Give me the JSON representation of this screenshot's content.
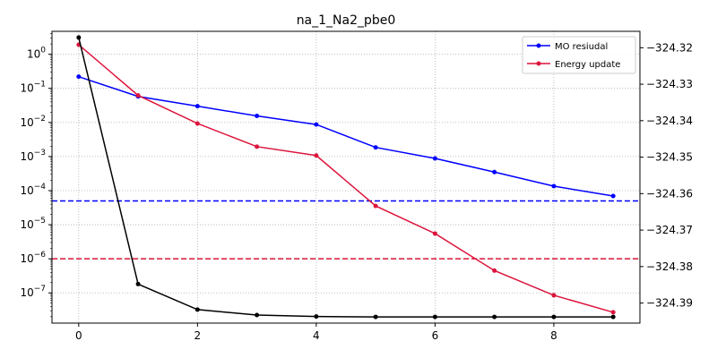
{
  "chart_data": {
    "type": "line",
    "title": "na_1_Na2_pbe0",
    "xlabel": "",
    "ylabel_left": "",
    "ylabel_right": "",
    "x": [
      0,
      1,
      2,
      3,
      4,
      5,
      6,
      7,
      8,
      9
    ],
    "xlim": [
      -0.45,
      9.45
    ],
    "xticks": [
      0,
      2,
      4,
      6,
      8
    ],
    "left_axis": {
      "scale": "log",
      "ylim": [
        1.3e-08,
        4.7
      ],
      "ticks": [
        {
          "value": 1,
          "label": "10",
          "exp": "0"
        },
        {
          "value": 0.1,
          "label": "10",
          "exp": "−1"
        },
        {
          "value": 0.01,
          "label": "10",
          "exp": "−2"
        },
        {
          "value": 0.001,
          "label": "10",
          "exp": "−3"
        },
        {
          "value": 0.0001,
          "label": "10",
          "exp": "−4"
        },
        {
          "value": 1e-05,
          "label": "10",
          "exp": "−5"
        },
        {
          "value": 1e-06,
          "label": "10",
          "exp": "−6"
        },
        {
          "value": 1e-07,
          "label": "10",
          "exp": "−7"
        }
      ]
    },
    "right_axis": {
      "scale": "linear",
      "ylim": [
        -324.3955,
        -324.3155
      ],
      "ticks": [
        {
          "value": -324.32,
          "label": "−324.32"
        },
        {
          "value": -324.33,
          "label": "−324.33"
        },
        {
          "value": -324.34,
          "label": "−324.34"
        },
        {
          "value": -324.35,
          "label": "−324.35"
        },
        {
          "value": -324.36,
          "label": "−324.36"
        },
        {
          "value": -324.37,
          "label": "−324.37"
        },
        {
          "value": -324.38,
          "label": "−324.38"
        },
        {
          "value": -324.39,
          "label": "−324.39"
        }
      ]
    },
    "series": [
      {
        "name": "MO resiudal",
        "axis": "left",
        "color": "#0000ff",
        "values": [
          0.22,
          0.058,
          0.03,
          0.0155,
          0.0087,
          0.00185,
          0.00088,
          0.00035,
          0.000135,
          6.95e-05
        ]
      },
      {
        "name": "Energy update",
        "axis": "left",
        "color": "#dc143c",
        "values": [
          1.9,
          0.062,
          0.0093,
          0.00195,
          0.00107,
          3.55e-05,
          5.5e-06,
          4.5e-07,
          8.5e-08,
          2.7e-08
        ]
      },
      {
        "axis": "right",
        "color": "#000000",
        "values": [
          -324.3172,
          -324.3848,
          -324.3918,
          -324.3933,
          -324.3937,
          -324.3938,
          -324.3938,
          -324.3938,
          -324.3938,
          -324.3938
        ]
      }
    ],
    "thresholds": [
      {
        "axis": "left",
        "value": 5e-05,
        "color": "#0000ff",
        "style": "dashed"
      },
      {
        "axis": "left",
        "value": 1e-06,
        "color": "#dc143c",
        "style": "dashed"
      }
    ],
    "grid": true,
    "legend": {
      "position": "top-right"
    }
  }
}
